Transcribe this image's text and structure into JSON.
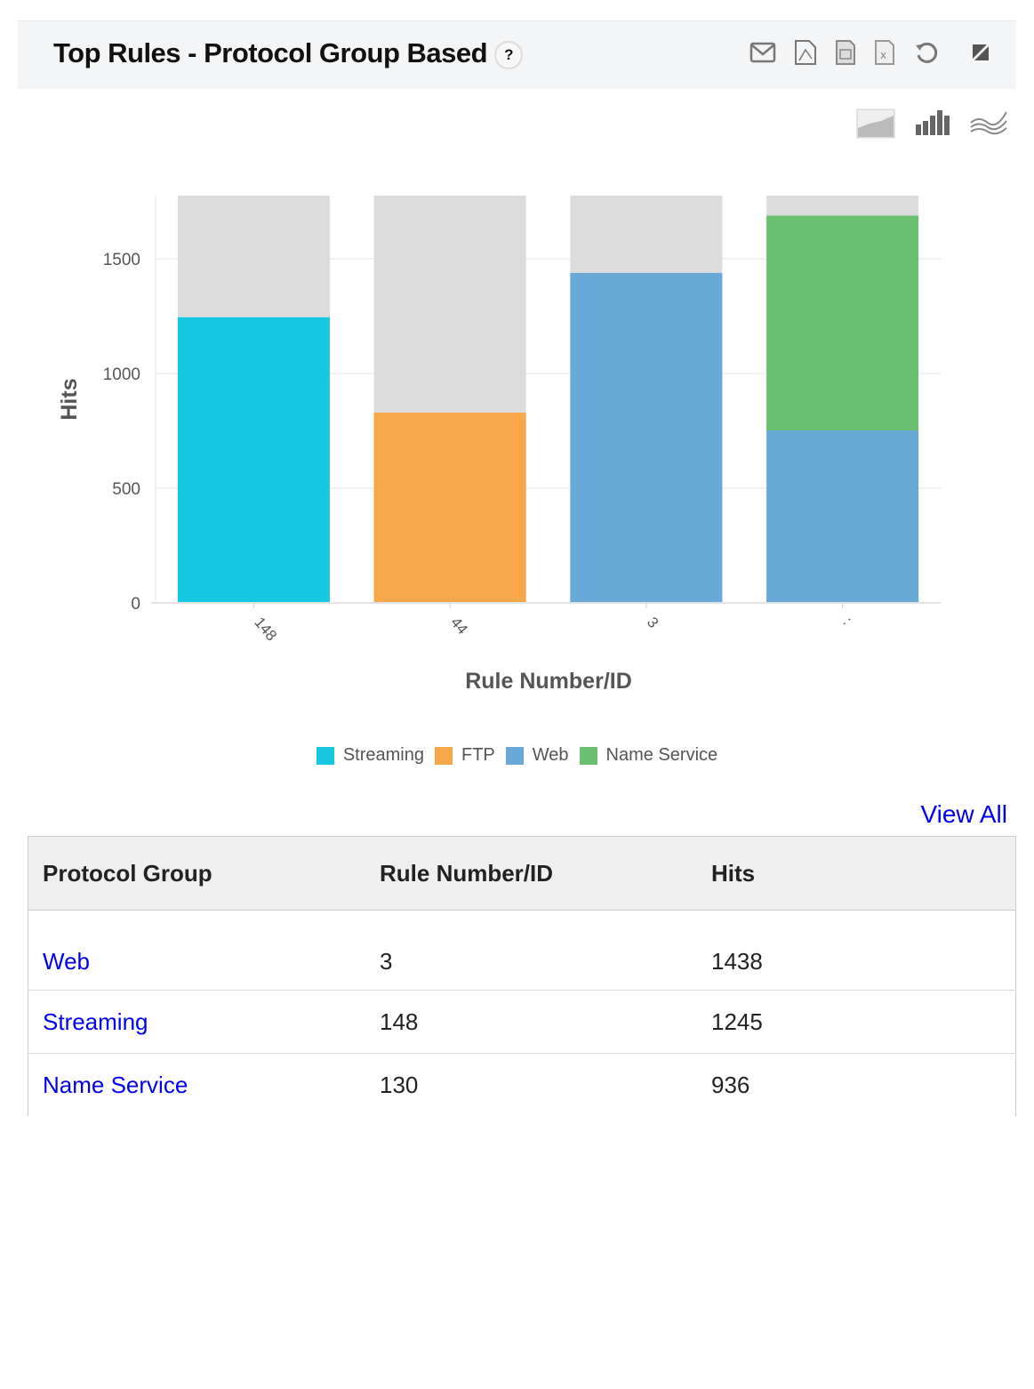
{
  "header": {
    "title": "Top Rules - Protocol Group Based",
    "help": "?"
  },
  "toolbar_icons": [
    "mail-icon",
    "pdf-icon",
    "csv-icon",
    "excel-icon",
    "refresh-icon",
    "expand-icon"
  ],
  "chart_type_icons": [
    "area-chart-icon",
    "bar-chart-icon",
    "line-chart-icon"
  ],
  "chart_data": {
    "type": "bar",
    "stacked": true,
    "categories": [
      "148",
      "44",
      "3",
      ":"
    ],
    "series": [
      {
        "name": "Streaming",
        "color": "#17c7e2",
        "values": [
          1245,
          0,
          0,
          0
        ]
      },
      {
        "name": "FTP",
        "color": "#f5a749",
        "values": [
          0,
          829,
          0,
          0
        ]
      },
      {
        "name": "Web",
        "color": "#69a9d8",
        "values": [
          0,
          0,
          1438,
          752
        ]
      },
      {
        "name": "Name Service",
        "color": "#6bbf70",
        "values": [
          0,
          0,
          0,
          936
        ]
      }
    ],
    "xlabel": "Rule Number/ID",
    "ylabel": "Hits",
    "ylim": [
      0,
      1775
    ],
    "yticks": [
      0,
      500,
      1000,
      1500
    ],
    "grid": true,
    "legend": "bottom",
    "background_bar_color": "#dcdcdc"
  },
  "view_all": "View All",
  "table": {
    "headers": [
      "Protocol Group",
      "Rule Number/ID",
      "Hits"
    ],
    "rows": [
      [
        "Web",
        "3",
        "1438"
      ],
      [
        "Streaming",
        "148",
        "1245"
      ],
      [
        "Name Service",
        "130",
        "936"
      ]
    ]
  }
}
